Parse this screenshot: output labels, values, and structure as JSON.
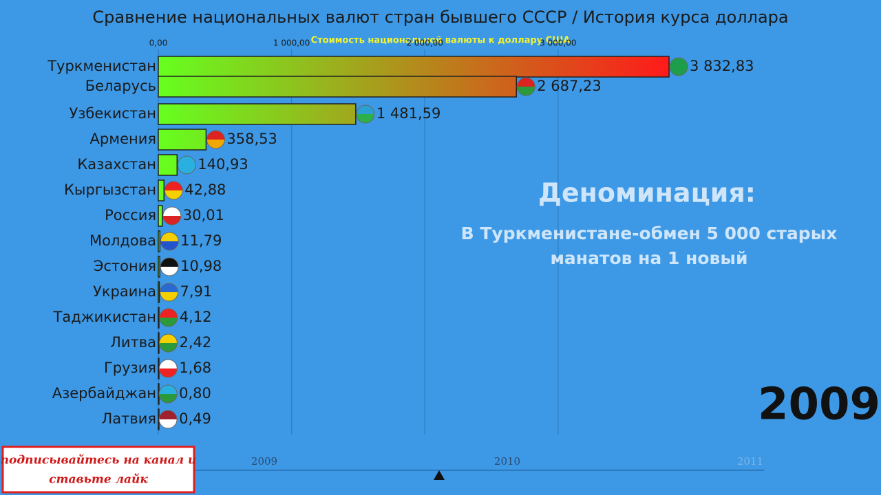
{
  "chart_data": {
    "type": "bar",
    "orientation": "horizontal",
    "title": "Сравнение национальных валют стран бывшего СССР / История курса доллара",
    "subtitle": "Стоимость национальной валюты к доллару США",
    "categories": [
      "Туркменистан",
      "Беларусь",
      "Узбекистан",
      "Армения",
      "Казахстан",
      "Кыргызстан",
      "Россия",
      "Молдова",
      "Эстония",
      "Украина",
      "Таджикистан",
      "Литва",
      "Грузия",
      "Азербайджан",
      "Латвия"
    ],
    "values": [
      3832.83,
      2687.23,
      1481.59,
      358.53,
      140.93,
      42.88,
      30.01,
      11.79,
      10.98,
      7.91,
      4.12,
      2.42,
      1.68,
      0.8,
      0.49
    ],
    "value_labels": [
      "3 832,83",
      "2 687,23",
      "1 481,59",
      "358,53",
      "140,93",
      "42,88",
      "30,01",
      "11,79",
      "10,98",
      "7,91",
      "4,12",
      "2,42",
      "1,68",
      "0,80",
      "0,49"
    ],
    "colors": [
      "#66ff1f",
      "#ff1a1a"
    ],
    "xlim": [
      0,
      5000
    ],
    "xticks": [
      {
        "value": 0,
        "label": "0,00"
      },
      {
        "value": 1000,
        "label": "1 000,00"
      },
      {
        "value": 2000,
        "label": "2 000,00"
      },
      {
        "value": 3000,
        "label": "3 000,00"
      }
    ],
    "grid": true,
    "annotation": {
      "heading": "Деноминация:",
      "lines": [
        "В Туркменистане-обмен 5 000 старых",
        "манатов на 1 новый"
      ]
    },
    "year": "2009",
    "timeline": [
      "2009",
      "2010",
      "2011"
    ]
  },
  "banner": [
    "подписывайтесь на канал и",
    "ставьте лайк"
  ]
}
